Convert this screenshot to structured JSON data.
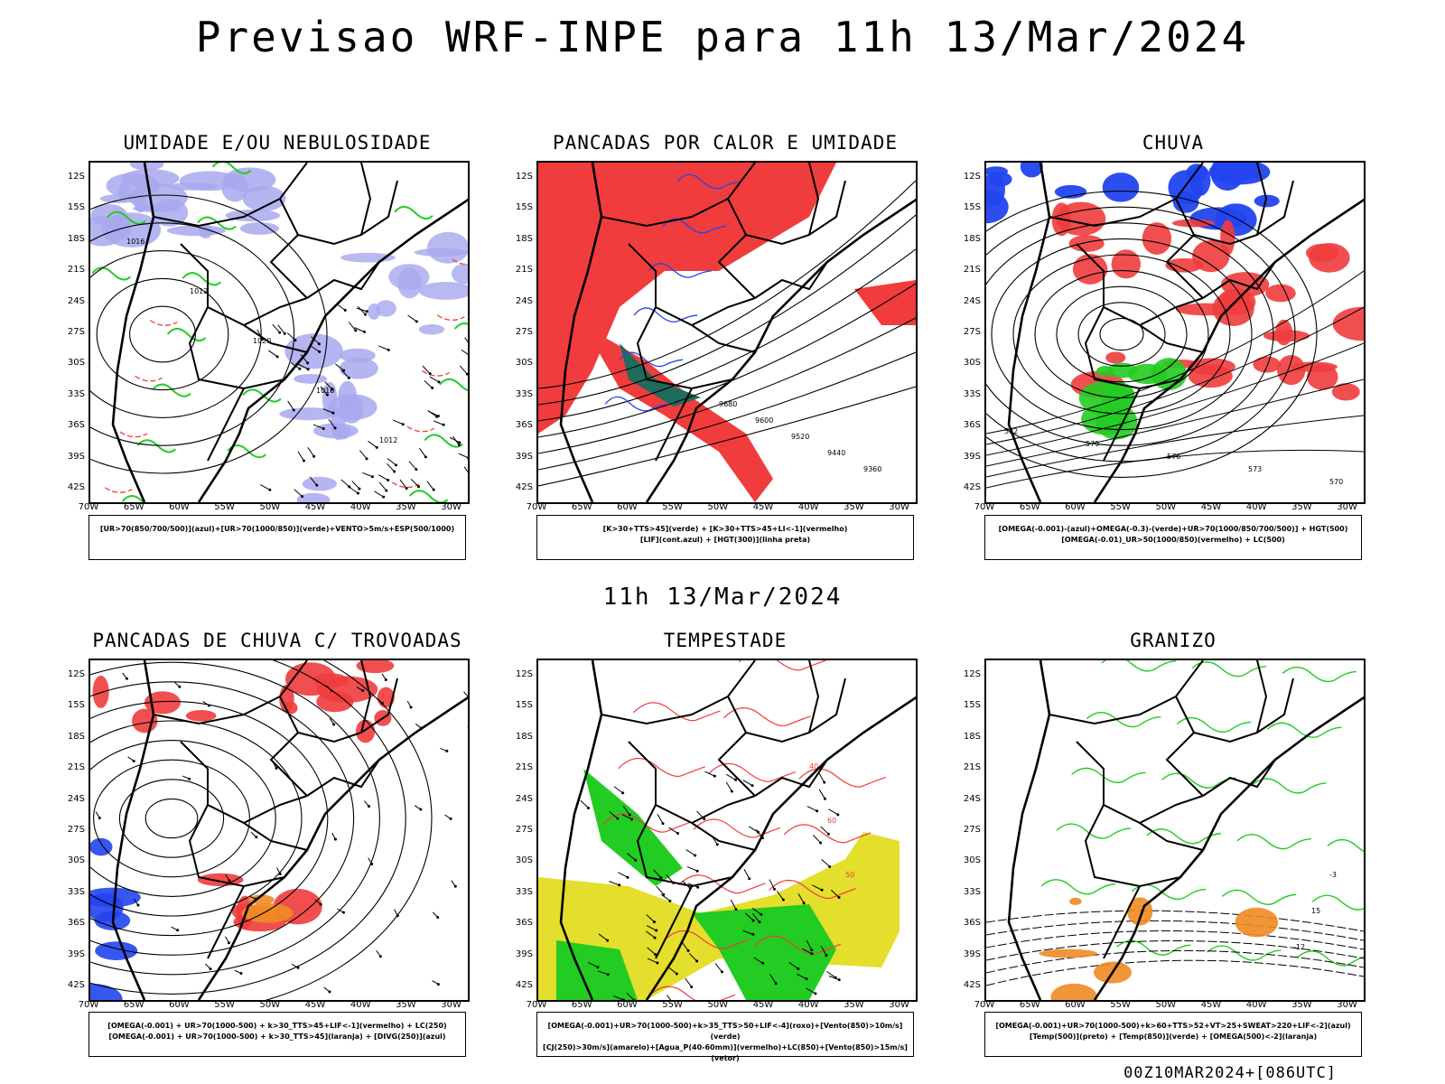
{
  "header": {
    "title": "Previsao WRF-INPE  para 11h 13/Mar/2024"
  },
  "mid_title": "11h 13/Mar/2024",
  "run_label": "00Z10MAR2024+[086UTC]",
  "axes": {
    "lat_labels": [
      "12S",
      "15S",
      "18S",
      "21S",
      "24S",
      "27S",
      "30S",
      "33S",
      "36S",
      "39S",
      "42S"
    ],
    "lon_labels": [
      "70W",
      "65W",
      "60W",
      "55W",
      "50W",
      "45W",
      "40W",
      "35W",
      "30W"
    ]
  },
  "colors": {
    "red": "#f03c3c",
    "green": "#22cc22",
    "blue": "#2244ee",
    "lavender": "#a8a8ee",
    "yellow": "#e4de2c",
    "darkgreen": "#1f6b5e",
    "orange": "#f08a24"
  },
  "panels": [
    {
      "id": "umidade",
      "title": "UMIDADE E/OU NEBULOSIDADE",
      "legend": [
        "[UR>70(850/700/500)](azul)+[UR>70(1000/850)](verde)+VENTO>5m/s+ESP(500/1000)"
      ],
      "contour_labels": [
        "1016",
        "1012",
        "1020",
        "1016",
        "1012"
      ]
    },
    {
      "id": "pancadas-calor",
      "title": "PANCADAS POR CALOR E UMIDADE",
      "legend": [
        "[K>30+TTS>45](verde) + [K>30+TTS>45+LI<-1](vermelho)",
        "[LIF](cont.azul) + [HGT(300)](linha preta)"
      ],
      "contour_labels": [
        "9680",
        "9600",
        "9520",
        "9440",
        "9360"
      ]
    },
    {
      "id": "chuva",
      "title": "CHUVA",
      "legend": [
        "[OMEGA(-0.001)-(azul)+OMEGA(-0.3)-(verde)+UR>70(1000/850/700/500)] + HGT(500)",
        "[OMEGA(-0.01)_UR>50(1000/850)(vermelho) + LC(500)"
      ],
      "contour_labels": [
        "582",
        "579",
        "576",
        "573",
        "570"
      ]
    },
    {
      "id": "trovoadas",
      "title": "PANCADAS DE CHUVA C/ TROVOADAS",
      "legend": [
        "[OMEGA(-0.001) + UR>70(1000-500) + k>30_TTS>45+LIF<-1](vermelho) + LC(250)",
        "[OMEGA(-0.001) + UR>70(1000-500) + k>30_TTS>45](laranja) + [DIVG(250)](azul)"
      ],
      "contour_labels": []
    },
    {
      "id": "tempestade",
      "title": "TEMPESTADE",
      "legend": [
        "[OMEGA(-0.001)+UR>70(1000-500)+k>35_TTS>50+LIF<-4](roxo)+[Vento(850)>10m/s](verde)",
        "[CJ(250)>30m/s](amarelo)+[Agua_P(40-60mm)](vermelho)+LC(850)+[Vento(850)>15m/s](vetor)"
      ],
      "contour_labels": [
        "40",
        "60",
        "50"
      ]
    },
    {
      "id": "granizo",
      "title": "GRANIZO",
      "legend": [
        "[OMEGA(-0.001)+UR>70(1000-500)+k>60+TTS>52+VT>25+SWEAT>220+LIF<-2](azul)",
        "[Temp(500)](preto) + [Temp(850)](verde) + [OMEGA(500)<-2](laranja)"
      ],
      "contour_labels": [
        "-12",
        "15",
        "-3"
      ]
    }
  ]
}
